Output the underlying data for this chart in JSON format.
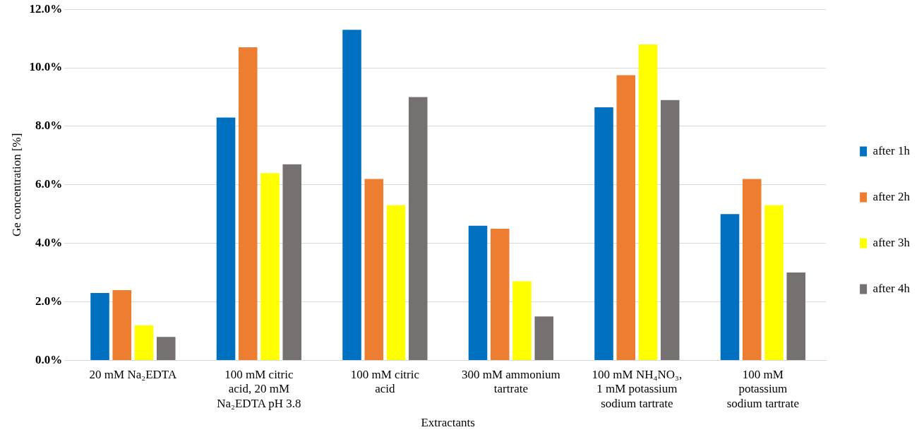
{
  "chart_data": {
    "type": "bar",
    "xlabel": "Extractants",
    "ylabel": "Ge concentration [%]",
    "categories": [
      "20 mM Na₂EDTA",
      "100 mM citric acid, 20 mM Na₂EDTA pH 3.8",
      "100 mM citric acid",
      "300 mM ammonium tartrate",
      "100 mM NH₄NO₃, 1 mM potassium sodium tartrate",
      "100 mM potassium sodium tartrate"
    ],
    "series": [
      {
        "name": "after 1h",
        "color": "#0070c0",
        "values": [
          2.3,
          8.3,
          11.3,
          4.6,
          8.65,
          5.0
        ]
      },
      {
        "name": "after 2h",
        "color": "#ed7d31",
        "values": [
          2.4,
          10.7,
          6.2,
          4.5,
          9.75,
          6.2
        ]
      },
      {
        "name": "after 3h",
        "color": "#ffff00",
        "values": [
          1.2,
          6.4,
          5.3,
          2.7,
          10.8,
          5.3
        ]
      },
      {
        "name": "after 4h",
        "color": "#767171",
        "values": [
          0.8,
          6.7,
          9.0,
          1.5,
          8.9,
          3.0
        ]
      }
    ],
    "ylim": [
      0,
      12
    ],
    "yticks": [
      {
        "value": 0,
        "label": "0.0%"
      },
      {
        "value": 2,
        "label": "2.0%"
      },
      {
        "value": 4,
        "label": "4.0%"
      },
      {
        "value": 6,
        "label": "6.0%"
      },
      {
        "value": 8,
        "label": "8.0%"
      },
      {
        "value": 10,
        "label": "10.0%"
      },
      {
        "value": 12,
        "label": "12.0%"
      }
    ],
    "grid": "y",
    "legend": "right"
  }
}
